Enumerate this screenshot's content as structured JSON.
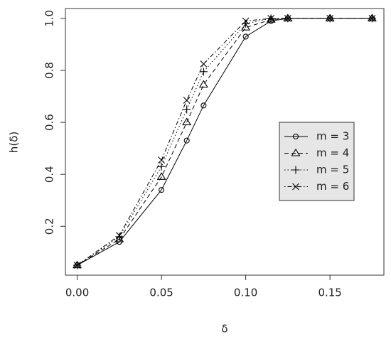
{
  "chart_data": {
    "type": "line",
    "x_label": "δ",
    "y_label": "h(δ)",
    "x": [
      0,
      0.025,
      0.05,
      0.065,
      0.075,
      0.1,
      0.115,
      0.125,
      0.15,
      0.175
    ],
    "series": [
      {
        "name": "m = 3",
        "color": "#000000",
        "marker": "circle",
        "dash": "solid",
        "values": [
          0.05,
          0.14,
          0.34,
          0.53,
          0.665,
          0.93,
          0.99,
          1,
          1,
          1
        ]
      },
      {
        "name": "m = 4",
        "color": "#000000",
        "marker": "triangle",
        "dash": "dashed",
        "values": [
          0.05,
          0.15,
          0.39,
          0.6,
          0.745,
          0.965,
          0.995,
          1,
          1,
          1
        ]
      },
      {
        "name": "m = 5",
        "color": "#000000",
        "marker": "plus",
        "dash": "dotted",
        "values": [
          0.05,
          0.16,
          0.43,
          0.65,
          0.795,
          0.98,
          1,
          1,
          1,
          1
        ]
      },
      {
        "name": "m = 6",
        "color": "#000000",
        "marker": "cross",
        "dash": "dotdash",
        "values": [
          0.05,
          0.165,
          0.455,
          0.685,
          0.825,
          0.99,
          1,
          1,
          1,
          1
        ]
      }
    ],
    "xlim": [
      -0.007,
      0.182
    ],
    "xticks": [
      {
        "value": 0,
        "label": "0.00"
      },
      {
        "value": 0.05,
        "label": "0.05"
      },
      {
        "value": 0.1,
        "label": "0.10"
      },
      {
        "value": 0.15,
        "label": "0.15"
      }
    ],
    "ylim": [
      0.012,
      1.038
    ],
    "yticks": [
      0.2,
      0.4,
      0.6,
      0.8,
      {
        "value": 1,
        "label": "1.0"
      }
    ],
    "legend": "right",
    "legend_background": "#e6e6e6"
  }
}
